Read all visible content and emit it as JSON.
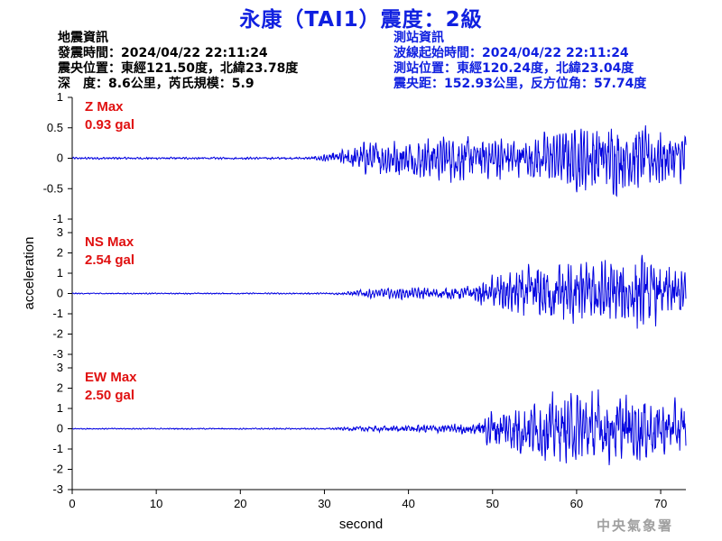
{
  "title": "永康（TAI1）震度：2級",
  "quake_info": {
    "heading": "地震資訊",
    "time": "發震時間：2024/04/22 22:11:24",
    "location": "震央位置：東經121.50度，北緯23.78度",
    "depth_magnitude": "深　度：8.6公里，芮氏規模：5.9"
  },
  "station_info": {
    "heading": "測站資訊",
    "start_time": "波線起始時間：2024/04/22 22:11:24",
    "location": "測站位置：東經120.24度，北緯23.04度",
    "distance": "震央距：152.93公里，反方位角：57.74度"
  },
  "agency": "中央氣象署",
  "chart_data": {
    "type": "line",
    "xlabel": "second",
    "ylabel": "acceleration",
    "xlim": [
      0,
      73
    ],
    "xticks": [
      0,
      10,
      20,
      30,
      40,
      50,
      60,
      70
    ],
    "line_color": "#0000e0",
    "panels": [
      {
        "component": "Z",
        "max_label": "Z Max",
        "max_value": "0.93 gal",
        "ylim": [
          -1,
          1
        ],
        "yticks": [
          1,
          0.5,
          0,
          -0.5,
          -1
        ],
        "envelope": [
          [
            0,
            0.02
          ],
          [
            28,
            0.02
          ],
          [
            29,
            0.04
          ],
          [
            30,
            0.08
          ],
          [
            32,
            0.15
          ],
          [
            35,
            0.3
          ],
          [
            40,
            0.35
          ],
          [
            45,
            0.4
          ],
          [
            50,
            0.38
          ],
          [
            55,
            0.4
          ],
          [
            60,
            0.55
          ],
          [
            63,
            0.65
          ],
          [
            65,
            0.6
          ],
          [
            70,
            0.5
          ],
          [
            73,
            0.45
          ]
        ]
      },
      {
        "component": "NS",
        "max_label": "NS Max",
        "max_value": "2.54 gal",
        "ylim": [
          -3,
          3
        ],
        "yticks": [
          3,
          2,
          1,
          0,
          -1,
          -2,
          -3
        ],
        "envelope": [
          [
            0,
            0.03
          ],
          [
            30,
            0.04
          ],
          [
            33,
            0.1
          ],
          [
            35,
            0.25
          ],
          [
            40,
            0.3
          ],
          [
            45,
            0.3
          ],
          [
            48,
            0.5
          ],
          [
            50,
            1.0
          ],
          [
            53,
            1.3
          ],
          [
            56,
            1.6
          ],
          [
            60,
            1.8
          ],
          [
            64,
            1.8
          ],
          [
            68,
            2.0
          ],
          [
            70,
            1.5
          ],
          [
            73,
            1.2
          ]
        ]
      },
      {
        "component": "EW",
        "max_label": "EW Max",
        "max_value": "2.50 gal",
        "ylim": [
          -3,
          3
        ],
        "yticks": [
          3,
          2,
          1,
          0,
          -1,
          -2,
          -3
        ],
        "envelope": [
          [
            0,
            0.03
          ],
          [
            30,
            0.04
          ],
          [
            33,
            0.1
          ],
          [
            35,
            0.15
          ],
          [
            40,
            0.2
          ],
          [
            45,
            0.25
          ],
          [
            48,
            0.4
          ],
          [
            50,
            1.1
          ],
          [
            53,
            1.4
          ],
          [
            56,
            1.6
          ],
          [
            60,
            1.9
          ],
          [
            62,
            2.0
          ],
          [
            65,
            1.8
          ],
          [
            68,
            1.9
          ],
          [
            70,
            1.6
          ],
          [
            73,
            1.3
          ]
        ]
      }
    ]
  }
}
